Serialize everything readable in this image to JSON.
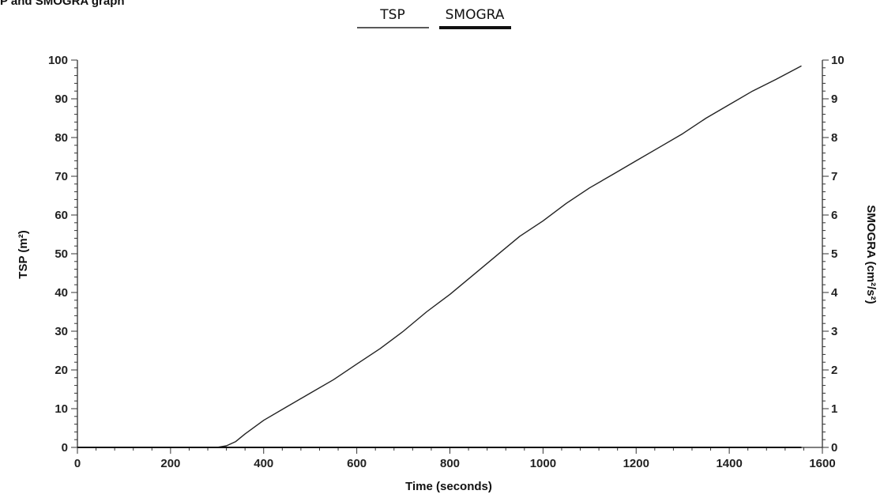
{
  "header": {
    "text": "SP and SMOGRA graph"
  },
  "chart_data": {
    "type": "line",
    "xlabel": "Time (seconds)",
    "ylabel": "TSP (m²)",
    "y2label": "SMOGRA (cm²/s²)",
    "xlim": [
      0,
      1600
    ],
    "ylim": [
      0,
      100
    ],
    "y2lim": [
      0,
      10
    ],
    "xticks": [
      0,
      200,
      400,
      600,
      800,
      1000,
      1200,
      1400,
      1600
    ],
    "yticks": [
      0,
      10,
      20,
      30,
      40,
      50,
      60,
      70,
      80,
      90,
      100
    ],
    "y2ticks": [
      0,
      1,
      2,
      3,
      4,
      5,
      6,
      7,
      8,
      9,
      10
    ],
    "legend_position": "top-center",
    "grid": false,
    "series": [
      {
        "name": "TSP",
        "axis": "left",
        "color": "#222222",
        "x": [
          0,
          300,
          320,
          340,
          360,
          400,
          450,
          500,
          550,
          600,
          650,
          700,
          750,
          800,
          850,
          900,
          950,
          1000,
          1050,
          1100,
          1150,
          1200,
          1250,
          1300,
          1350,
          1400,
          1450,
          1500,
          1555
        ],
        "y": [
          0,
          0,
          0.4,
          1.5,
          3.5,
          7.0,
          10.5,
          14.0,
          17.5,
          21.5,
          25.5,
          30.0,
          35.0,
          39.5,
          44.5,
          49.5,
          54.5,
          58.5,
          63.0,
          67.0,
          70.5,
          74.0,
          77.5,
          81.0,
          85.0,
          88.5,
          92.0,
          95.0,
          98.5
        ]
      },
      {
        "name": "SMOGRA",
        "axis": "right",
        "color": "#111111",
        "x": [
          0,
          400,
          800,
          1200,
          1555
        ],
        "y": [
          0,
          0,
          0,
          0,
          0
        ]
      }
    ]
  }
}
